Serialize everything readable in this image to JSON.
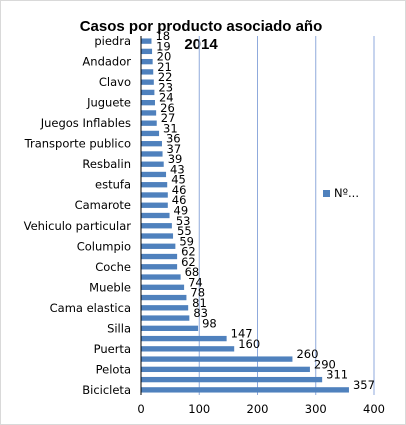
{
  "chart_data": {
    "type": "bar",
    "orientation": "horizontal",
    "title": "Casos por producto asociado  año 2014",
    "title_lines": [
      "Casos por producto asociado  año",
      "2014"
    ],
    "categories": [
      "Bicicleta",
      "",
      "Pelota",
      "",
      "Puerta",
      "",
      "Silla",
      "",
      "Cama elastica",
      "",
      "Mueble",
      "",
      "Coche",
      "",
      "Columpio",
      "",
      "Vehiculo particular",
      "",
      "Camarote",
      "",
      "estufa",
      "",
      "Resbalin",
      "",
      "Transporte publico",
      "",
      "Juegos Inflables",
      "",
      "Juguete",
      "",
      "Clavo",
      "",
      "Andador",
      "",
      "piedra"
    ],
    "values": [
      357,
      311,
      290,
      260,
      160,
      147,
      98,
      83,
      81,
      78,
      74,
      68,
      62,
      62,
      59,
      55,
      53,
      49,
      46,
      46,
      45,
      43,
      39,
      37,
      36,
      31,
      27,
      26,
      24,
      23,
      22,
      21,
      20,
      19,
      18
    ],
    "series": [
      {
        "name": "Nº...",
        "color": "#4f81bd"
      }
    ],
    "xlim": [
      0,
      400
    ],
    "xticks": [
      0,
      100,
      200,
      300,
      400
    ],
    "grid": true,
    "legend_position": "right"
  }
}
